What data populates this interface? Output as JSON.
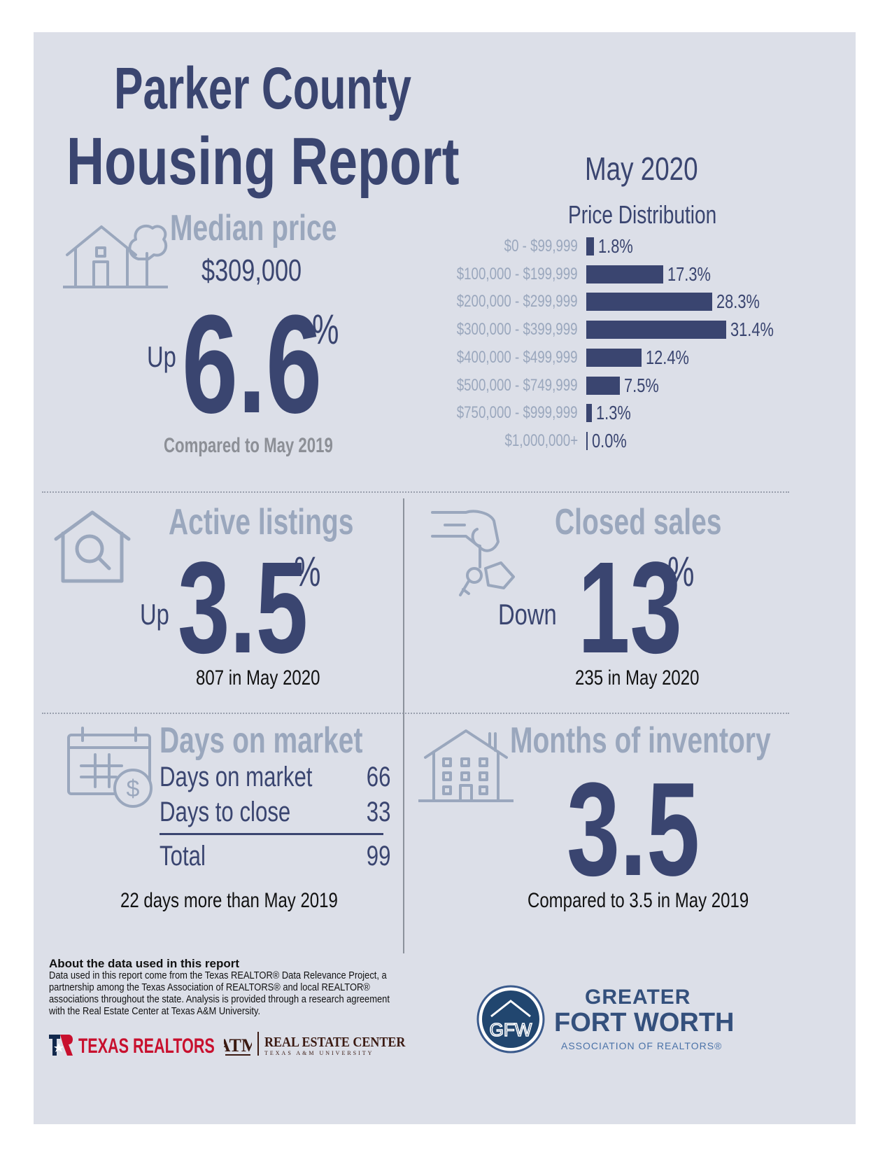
{
  "header": {
    "title_line1": "Parker County",
    "title_line2": "Housing Report",
    "month": "May 2020"
  },
  "median_price": {
    "heading": "Median price",
    "value": "$309,000",
    "direction": "Up",
    "percent": "6.6",
    "percent_sign": "%",
    "comparison": "Compared to May 2019"
  },
  "price_distribution": {
    "heading": "Price Distribution"
  },
  "chart_data": {
    "type": "bar",
    "title": "Price Distribution",
    "orientation": "horizontal",
    "categories": [
      "$0 - $99,999",
      "$100,000 - $199,999",
      "$200,000 - $299,999",
      "$300,000 - $399,999",
      "$400,000 - $499,999",
      "$500,000 - $749,999",
      "$750,000 - $999,999",
      "$1,000,000+"
    ],
    "values": [
      1.8,
      17.3,
      28.3,
      31.4,
      12.4,
      7.5,
      1.3,
      0.0
    ],
    "value_labels": [
      "1.8%",
      "17.3%",
      "28.3%",
      "31.4%",
      "12.4%",
      "7.5%",
      "1.3%",
      "0.0%"
    ],
    "bar_color": "#3a4570"
  },
  "active_listings": {
    "heading": "Active listings",
    "direction": "Up",
    "percent": "3.5",
    "percent_sign": "%",
    "note": "807 in May 2020"
  },
  "closed_sales": {
    "heading": "Closed sales",
    "direction": "Down",
    "percent": "13",
    "percent_sign": "%",
    "note": "235 in May 2020"
  },
  "days_on_market": {
    "heading": "Days on market",
    "rows": [
      {
        "label": "Days on market",
        "value": "66"
      },
      {
        "label": "Days to close",
        "value": "33"
      }
    ],
    "total_label": "Total",
    "total_value": "99",
    "note": "22 days more than May 2019"
  },
  "months_inventory": {
    "heading": "Months of inventory",
    "value": "3.5",
    "note": "Compared to 3.5 in May 2019"
  },
  "footer": {
    "about_title": "About the data used in this report",
    "about_text": "Data used in this report come from the Texas REALTOR® Data Relevance Project, a partnership among the Texas Association of REALTORS® and local REALTOR® associations throughout the state. Analysis is provided through a research agreement with the Real Estate Center at Texas A&M University.",
    "texas_realtors": "TEXAS REALTORS",
    "rec_line1": "REAL ESTATE CENTER",
    "rec_line2": "TEXAS A&M UNIVERSITY",
    "gfw_line1": "GREATER",
    "gfw_line2": "FORT WORTH",
    "gfw_line3": "ASSOCIATION OF REALTORS®",
    "gfw_mark": "GFW"
  },
  "colors": {
    "navy": "#3a4570",
    "slate": "#9aa7bd",
    "background": "#dcdfe8"
  }
}
